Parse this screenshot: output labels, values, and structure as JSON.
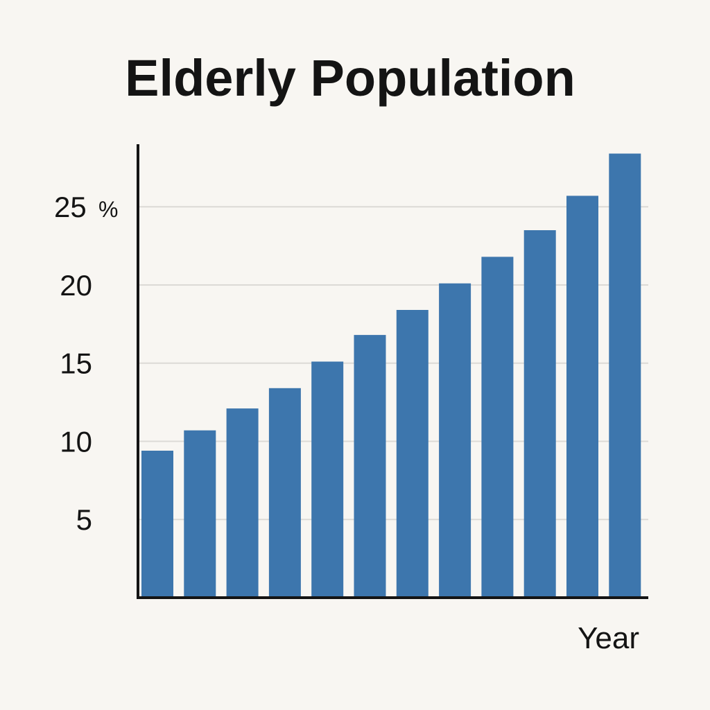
{
  "chart_data": {
    "type": "bar",
    "title": "Elderly Population",
    "xlabel": "Year",
    "ylabel": "",
    "y_unit": "%",
    "ylim": [
      0,
      29
    ],
    "yticks": [
      5,
      10,
      15,
      20,
      25
    ],
    "grid": true,
    "categories": [
      "",
      "",
      "",
      "",
      "",
      "",
      "",
      "",
      "",
      "",
      "",
      ""
    ],
    "series": [
      {
        "values": [
          9.4,
          10.7,
          12.1,
          13.4,
          15.1,
          16.8,
          18.4,
          20.1,
          21.8,
          23.5,
          25.7,
          28.4
        ]
      }
    ],
    "colors": {
      "bar": "#3d76ad",
      "grid": "#dcdad6",
      "axis": "#141414"
    }
  }
}
